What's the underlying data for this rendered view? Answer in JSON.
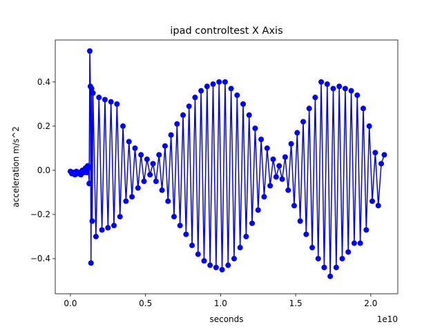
{
  "chart_data": {
    "type": "line",
    "title": "ipad controltest X Axis",
    "x_label": "seconds",
    "y_label": "acceleration m/s^2",
    "x_offset_label": "1e10",
    "xlim": [
      -1010000000.0,
      21800000000.0
    ],
    "ylim": [
      -0.559,
      0.59
    ],
    "xticks": [
      {
        "value": 0,
        "label": "0.0"
      },
      {
        "value": 5000000000.0,
        "label": "0.5"
      },
      {
        "value": 10000000000.0,
        "label": "1.0"
      },
      {
        "value": 15000000000.0,
        "label": "1.5"
      },
      {
        "value": 20000000000.0,
        "label": "2.0"
      }
    ],
    "yticks": [
      {
        "value": -0.4,
        "label": "−0.4"
      },
      {
        "value": -0.2,
        "label": "−0.2"
      },
      {
        "value": 0,
        "label": "0.0"
      },
      0.2,
      0.4
    ],
    "marker": "o",
    "series": [
      {
        "color": "#0000ff",
        "x": [
          0,
          100000000.0,
          200000000.0,
          300000000.0,
          400000000.0,
          500000000.0,
          600000000.0,
          700000000.0,
          800000000.0,
          900000000.0,
          1000000000.0,
          1100000000.0,
          1150000000.0,
          1200000000.0,
          1250000000.0,
          1290000000.0,
          1330000000.0,
          1370000000.0,
          1410000000.0,
          1450000000.0,
          1500000000.0,
          1700000000.0,
          1900000000.0,
          2100000000.0,
          2300000000.0,
          2500000000.0,
          2700000000.0,
          2900000000.0,
          3100000000.0,
          3300000000.0,
          3500000000.0,
          3700000000.0,
          3900000000.0,
          4100000000.0,
          4300000000.0,
          4500000000.0,
          4700000000.0,
          4900000000.0,
          5100000000.0,
          5300000000.0,
          5500000000.0,
          5700000000.0,
          5900000000.0,
          6100000000.0,
          6300000000.0,
          6500000000.0,
          6700000000.0,
          6900000000.0,
          7100000000.0,
          7300000000.0,
          7500000000.0,
          7700000000.0,
          7900000000.0,
          8100000000.0,
          8300000000.0,
          8500000000.0,
          8700000000.0,
          8900000000.0,
          9100000000.0,
          9300000000.0,
          9500000000.0,
          9700000000.0,
          9900000000.0,
          10100000000.0,
          10300000000.0,
          10500000000.0,
          10700000000.0,
          10900000000.0,
          11100000000.0,
          11300000000.0,
          11500000000.0,
          11700000000.0,
          11900000000.0,
          12100000000.0,
          12300000000.0,
          12500000000.0,
          12700000000.0,
          12900000000.0,
          13100000000.0,
          13300000000.0,
          13500000000.0,
          13700000000.0,
          13900000000.0,
          14100000000.0,
          14300000000.0,
          14500000000.0,
          14700000000.0,
          14900000000.0,
          15100000000.0,
          15300000000.0,
          15500000000.0,
          15700000000.0,
          15900000000.0,
          16100000000.0,
          16300000000.0,
          16500000000.0,
          16700000000.0,
          16900000000.0,
          17100000000.0,
          17300000000.0,
          17500000000.0,
          17700000000.0,
          17900000000.0,
          18100000000.0,
          18300000000.0,
          18500000000.0,
          18700000000.0,
          18900000000.0,
          19100000000.0,
          19300000000.0,
          19500000000.0,
          19700000000.0,
          19900000000.0,
          20100000000.0,
          20300000000.0,
          20500000000.0,
          20700000000.0,
          20900000000.0
        ],
        "values": [
          -0.005,
          -0.015,
          -0.01,
          -0.02,
          -0.005,
          -0.015,
          -0.01,
          -0.02,
          0.0,
          -0.01,
          0.01,
          -0.01,
          0.02,
          0.01,
          -0.06,
          0.54,
          0.38,
          -0.42,
          0.37,
          -0.23,
          0.35,
          -0.3,
          0.33,
          -0.27,
          0.32,
          -0.26,
          0.31,
          -0.25,
          0.3,
          -0.21,
          0.2,
          -0.14,
          0.13,
          -0.12,
          0.1,
          -0.08,
          0.07,
          -0.05,
          0.05,
          -0.02,
          0.03,
          -0.05,
          0.07,
          -0.09,
          0.11,
          -0.14,
          0.16,
          -0.21,
          0.21,
          -0.25,
          0.25,
          -0.29,
          0.29,
          -0.34,
          0.33,
          -0.38,
          0.36,
          -0.41,
          0.38,
          -0.43,
          0.39,
          -0.44,
          0.4,
          -0.45,
          0.4,
          -0.43,
          0.37,
          -0.4,
          0.34,
          -0.35,
          0.3,
          -0.3,
          0.25,
          -0.24,
          0.19,
          -0.18,
          0.14,
          -0.12,
          0.1,
          -0.07,
          0.05,
          -0.03,
          0.02,
          -0.04,
          0.06,
          -0.09,
          0.12,
          -0.16,
          0.17,
          -0.23,
          0.22,
          -0.29,
          0.28,
          -0.35,
          0.33,
          -0.4,
          0.4,
          -0.44,
          0.39,
          -0.48,
          0.37,
          -0.44,
          0.38,
          -0.4,
          0.37,
          -0.37,
          0.36,
          -0.33,
          0.34,
          -0.33,
          0.28,
          -0.27,
          0.2,
          -0.14,
          0.08,
          -0.16,
          0.03,
          0.07
        ]
      }
    ]
  }
}
